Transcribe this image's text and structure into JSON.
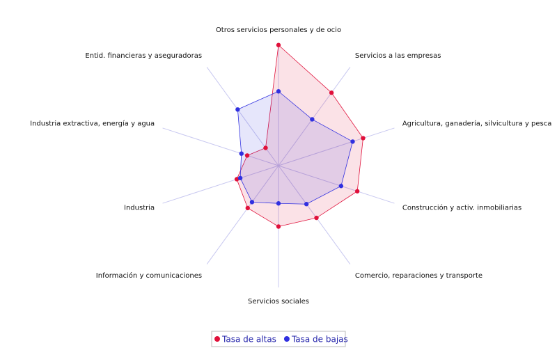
{
  "chart_data": {
    "type": "radar",
    "categories": [
      "Otros servicios personales y de ocio",
      "Servicios a las empresas",
      "Agricultura, ganadería, silvicultura y pesca",
      "Construcción y activ. inmobiliarias",
      "Comercio, reparaciones y transporte",
      "Servicios sociales",
      "Información y comunicaciones",
      "Industria",
      "Industria extractiva, energía y agua",
      "Entid. financieras y aseguradoras"
    ],
    "rlim": [
      0,
      100
    ],
    "series": [
      {
        "name": "Tasa de altas",
        "color": "#e0103a",
        "values": [
          99,
          74,
          73,
          68,
          53,
          50,
          43,
          36,
          27,
          18
        ]
      },
      {
        "name": "Tasa de bajas",
        "color": "#3030e0",
        "values": [
          61,
          47,
          64,
          54,
          39,
          31,
          37,
          33,
          32,
          57
        ]
      }
    ]
  }
}
